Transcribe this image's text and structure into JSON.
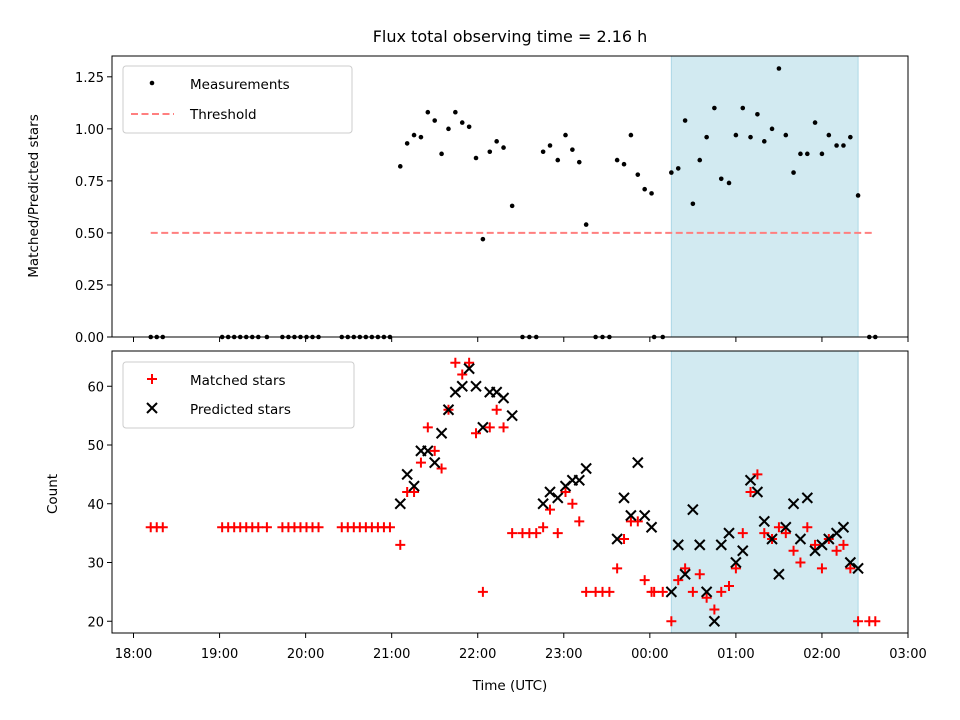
{
  "chart_data": [
    {
      "type": "scatter",
      "title": "Flux total observing time = 2.16 h",
      "xlabel": "",
      "ylabel": "Matched/Predicted stars",
      "ylim": [
        0,
        1.35
      ],
      "yticks": [
        0.0,
        0.25,
        0.5,
        0.75,
        1.0,
        1.25
      ],
      "ytick_labels": [
        "0.00",
        "0.25",
        "0.50",
        "0.75",
        "1.00",
        "1.25"
      ],
      "xlim_hours": [
        17.75,
        27.0
      ],
      "shaded_span_hours": [
        24.25,
        26.42
      ],
      "shade_color": "#add8e6",
      "legend": {
        "placement": "upper-left",
        "entries": [
          "Measurements",
          "Threshold"
        ]
      },
      "threshold": {
        "name": "Threshold",
        "value": 0.5,
        "x_range_hours": [
          18.2,
          26.6
        ],
        "color": "#ff7f7f"
      },
      "series": [
        {
          "name": "Measurements",
          "color": "#000000",
          "points": [
            [
              18.2,
              0
            ],
            [
              18.27,
              0
            ],
            [
              18.34,
              0
            ],
            [
              19.03,
              0
            ],
            [
              19.1,
              0
            ],
            [
              19.17,
              0
            ],
            [
              19.24,
              0
            ],
            [
              19.31,
              0
            ],
            [
              19.38,
              0
            ],
            [
              19.45,
              0
            ],
            [
              19.55,
              0
            ],
            [
              19.73,
              0
            ],
            [
              19.8,
              0
            ],
            [
              19.87,
              0
            ],
            [
              19.94,
              0
            ],
            [
              20.01,
              0
            ],
            [
              20.08,
              0
            ],
            [
              20.15,
              0
            ],
            [
              20.42,
              0
            ],
            [
              20.49,
              0
            ],
            [
              20.56,
              0
            ],
            [
              20.63,
              0
            ],
            [
              20.7,
              0
            ],
            [
              20.77,
              0
            ],
            [
              20.84,
              0
            ],
            [
              20.91,
              0
            ],
            [
              20.98,
              0
            ],
            [
              21.1,
              0.82
            ],
            [
              21.18,
              0.93
            ],
            [
              21.26,
              0.97
            ],
            [
              21.34,
              0.96
            ],
            [
              21.42,
              1.08
            ],
            [
              21.5,
              1.04
            ],
            [
              21.58,
              0.88
            ],
            [
              21.66,
              1.0
            ],
            [
              21.74,
              1.08
            ],
            [
              21.82,
              1.03
            ],
            [
              21.9,
              1.01
            ],
            [
              21.98,
              0.86
            ],
            [
              22.06,
              0.47
            ],
            [
              22.14,
              0.89
            ],
            [
              22.22,
              0.94
            ],
            [
              22.3,
              0.91
            ],
            [
              22.4,
              0.63
            ],
            [
              22.52,
              0
            ],
            [
              22.6,
              0
            ],
            [
              22.68,
              0
            ],
            [
              22.76,
              0.89
            ],
            [
              22.84,
              0.92
            ],
            [
              22.93,
              0.85
            ],
            [
              23.02,
              0.97
            ],
            [
              23.1,
              0.9
            ],
            [
              23.18,
              0.84
            ],
            [
              23.26,
              0.54
            ],
            [
              23.37,
              0
            ],
            [
              23.45,
              0
            ],
            [
              23.53,
              0
            ],
            [
              23.62,
              0.85
            ],
            [
              23.7,
              0.83
            ],
            [
              23.78,
              0.97
            ],
            [
              23.86,
              0.78
            ],
            [
              23.94,
              0.71
            ],
            [
              24.02,
              0.69
            ],
            [
              24.05,
              0
            ],
            [
              24.15,
              0
            ],
            [
              24.25,
              0.79
            ],
            [
              24.33,
              0.81
            ],
            [
              24.41,
              1.04
            ],
            [
              24.5,
              0.64
            ],
            [
              24.58,
              0.85
            ],
            [
              24.66,
              0.96
            ],
            [
              24.75,
              1.1
            ],
            [
              24.83,
              0.76
            ],
            [
              24.92,
              0.74
            ],
            [
              25.0,
              0.97
            ],
            [
              25.08,
              1.1
            ],
            [
              25.17,
              0.96
            ],
            [
              25.25,
              1.07
            ],
            [
              25.33,
              0.94
            ],
            [
              25.42,
              1.0
            ],
            [
              25.5,
              1.29
            ],
            [
              25.58,
              0.97
            ],
            [
              25.67,
              0.79
            ],
            [
              25.75,
              0.88
            ],
            [
              25.83,
              0.88
            ],
            [
              25.92,
              1.03
            ],
            [
              26.0,
              0.88
            ],
            [
              26.08,
              0.97
            ],
            [
              26.17,
              0.92
            ],
            [
              26.25,
              0.92
            ],
            [
              26.33,
              0.96
            ],
            [
              26.42,
              0.68
            ],
            [
              26.55,
              0
            ],
            [
              26.62,
              0
            ]
          ]
        }
      ]
    },
    {
      "type": "scatter",
      "title": "",
      "xlabel": "Time (UTC)",
      "ylabel": "Count",
      "ylim": [
        18,
        66
      ],
      "yticks": [
        20,
        30,
        40,
        50,
        60
      ],
      "ytick_labels": [
        "20",
        "30",
        "40",
        "50",
        "60"
      ],
      "xlim_hours": [
        17.75,
        27.0
      ],
      "xticks_hours": [
        18,
        19,
        20,
        21,
        22,
        23,
        24,
        25,
        26,
        27
      ],
      "xtick_labels": [
        "18:00",
        "19:00",
        "20:00",
        "21:00",
        "22:00",
        "23:00",
        "00:00",
        "01:00",
        "02:00",
        "03:00"
      ],
      "shaded_span_hours": [
        24.25,
        26.42
      ],
      "shade_color": "#add8e6",
      "legend": {
        "placement": "upper-left",
        "entries": [
          "Matched stars",
          "Predicted stars"
        ]
      },
      "series": [
        {
          "name": "Matched stars",
          "marker": "plus",
          "color": "#ff0000",
          "points": [
            [
              18.2,
              36
            ],
            [
              18.27,
              36
            ],
            [
              18.34,
              36
            ],
            [
              19.03,
              36
            ],
            [
              19.1,
              36
            ],
            [
              19.17,
              36
            ],
            [
              19.24,
              36
            ],
            [
              19.31,
              36
            ],
            [
              19.38,
              36
            ],
            [
              19.45,
              36
            ],
            [
              19.55,
              36
            ],
            [
              19.73,
              36
            ],
            [
              19.8,
              36
            ],
            [
              19.87,
              36
            ],
            [
              19.94,
              36
            ],
            [
              20.01,
              36
            ],
            [
              20.08,
              36
            ],
            [
              20.15,
              36
            ],
            [
              20.42,
              36
            ],
            [
              20.49,
              36
            ],
            [
              20.56,
              36
            ],
            [
              20.63,
              36
            ],
            [
              20.7,
              36
            ],
            [
              20.77,
              36
            ],
            [
              20.84,
              36
            ],
            [
              20.91,
              36
            ],
            [
              20.98,
              36
            ],
            [
              21.1,
              33
            ],
            [
              21.18,
              42
            ],
            [
              21.26,
              42
            ],
            [
              21.34,
              47
            ],
            [
              21.42,
              53
            ],
            [
              21.5,
              49
            ],
            [
              21.58,
              46
            ],
            [
              21.66,
              56
            ],
            [
              21.74,
              64
            ],
            [
              21.82,
              62
            ],
            [
              21.9,
              64
            ],
            [
              21.98,
              52
            ],
            [
              22.06,
              25
            ],
            [
              22.14,
              53
            ],
            [
              22.22,
              56
            ],
            [
              22.3,
              53
            ],
            [
              22.4,
              35
            ],
            [
              22.52,
              35
            ],
            [
              22.6,
              35
            ],
            [
              22.68,
              35
            ],
            [
              22.76,
              36
            ],
            [
              22.84,
              39
            ],
            [
              22.93,
              35
            ],
            [
              23.02,
              42
            ],
            [
              23.1,
              40
            ],
            [
              23.18,
              37
            ],
            [
              23.26,
              25
            ],
            [
              23.37,
              25
            ],
            [
              23.45,
              25
            ],
            [
              23.53,
              25
            ],
            [
              23.62,
              29
            ],
            [
              23.7,
              34
            ],
            [
              23.78,
              37
            ],
            [
              23.86,
              37
            ],
            [
              23.94,
              27
            ],
            [
              24.02,
              25
            ],
            [
              24.05,
              25
            ],
            [
              24.15,
              25
            ],
            [
              24.25,
              20
            ],
            [
              24.33,
              27
            ],
            [
              24.41,
              29
            ],
            [
              24.5,
              25
            ],
            [
              24.58,
              28
            ],
            [
              24.66,
              24
            ],
            [
              24.75,
              22
            ],
            [
              24.83,
              25
            ],
            [
              24.92,
              26
            ],
            [
              25.0,
              29
            ],
            [
              25.08,
              35
            ],
            [
              25.17,
              42
            ],
            [
              25.25,
              45
            ],
            [
              25.33,
              35
            ],
            [
              25.42,
              34
            ],
            [
              25.5,
              36
            ],
            [
              25.58,
              35
            ],
            [
              25.67,
              32
            ],
            [
              25.75,
              30
            ],
            [
              25.83,
              36
            ],
            [
              25.92,
              33
            ],
            [
              26.0,
              29
            ],
            [
              26.08,
              34
            ],
            [
              26.17,
              32
            ],
            [
              26.25,
              33
            ],
            [
              26.33,
              29
            ],
            [
              26.42,
              20
            ],
            [
              26.55,
              20
            ],
            [
              26.62,
              20
            ]
          ]
        },
        {
          "name": "Predicted stars",
          "marker": "x",
          "color": "#000000",
          "points": [
            [
              21.1,
              40
            ],
            [
              21.18,
              45
            ],
            [
              21.26,
              43
            ],
            [
              21.34,
              49
            ],
            [
              21.42,
              49
            ],
            [
              21.5,
              47
            ],
            [
              21.58,
              52
            ],
            [
              21.66,
              56
            ],
            [
              21.74,
              59
            ],
            [
              21.82,
              60
            ],
            [
              21.9,
              63
            ],
            [
              21.98,
              60
            ],
            [
              22.06,
              53
            ],
            [
              22.14,
              59
            ],
            [
              22.22,
              59
            ],
            [
              22.3,
              58
            ],
            [
              22.4,
              55
            ],
            [
              22.76,
              40
            ],
            [
              22.84,
              42
            ],
            [
              22.93,
              41
            ],
            [
              23.02,
              43
            ],
            [
              23.1,
              44
            ],
            [
              23.18,
              44
            ],
            [
              23.26,
              46
            ],
            [
              23.62,
              34
            ],
            [
              23.7,
              41
            ],
            [
              23.78,
              38
            ],
            [
              23.86,
              47
            ],
            [
              23.94,
              38
            ],
            [
              24.02,
              36
            ],
            [
              24.25,
              25
            ],
            [
              24.33,
              33
            ],
            [
              24.41,
              28
            ],
            [
              24.5,
              39
            ],
            [
              24.58,
              33
            ],
            [
              24.66,
              25
            ],
            [
              24.75,
              20
            ],
            [
              24.83,
              33
            ],
            [
              24.92,
              35
            ],
            [
              25.0,
              30
            ],
            [
              25.08,
              32
            ],
            [
              25.17,
              44
            ],
            [
              25.25,
              42
            ],
            [
              25.33,
              37
            ],
            [
              25.42,
              34
            ],
            [
              25.5,
              28
            ],
            [
              25.58,
              36
            ],
            [
              25.67,
              40
            ],
            [
              25.75,
              34
            ],
            [
              25.83,
              41
            ],
            [
              25.92,
              32
            ],
            [
              26.0,
              33
            ],
            [
              26.08,
              34
            ],
            [
              26.17,
              35
            ],
            [
              26.25,
              36
            ],
            [
              26.33,
              30
            ],
            [
              26.42,
              29
            ]
          ]
        }
      ]
    }
  ]
}
